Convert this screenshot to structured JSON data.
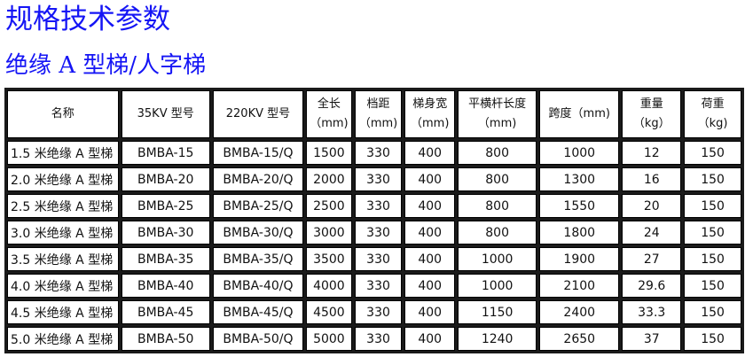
{
  "title": "规格技术参数",
  "subtitle": "绝缘 A 型梯/人字梯",
  "table": {
    "headers": [
      [
        "名称",
        ""
      ],
      [
        "35KV 型号",
        ""
      ],
      [
        "220KV 型号",
        ""
      ],
      [
        "全长",
        "（mm)"
      ],
      [
        "档距",
        "（mm)"
      ],
      [
        "梯身宽",
        "（mm)"
      ],
      [
        "平横杆长度",
        "（mm)"
      ],
      [
        "跨度（mm)",
        ""
      ],
      [
        "重量",
        "（kg）"
      ],
      [
        "荷重",
        "（kg)"
      ]
    ],
    "rows": [
      [
        "1.5 米绝缘 A 型梯",
        "BMBA-15",
        "BMBA-15/Q",
        "1500",
        "330",
        "400",
        "800",
        "1000",
        "12",
        "150"
      ],
      [
        "2.0 米绝缘 A 型梯",
        "BMBA-20",
        "BMBA-20/Q",
        "2000",
        "330",
        "400",
        "800",
        "1300",
        "16",
        "150"
      ],
      [
        "2.5 米绝缘 A 型梯",
        "BMBA-25",
        "BMBA-25/Q",
        "2500",
        "330",
        "400",
        "800",
        "1550",
        "20",
        "150"
      ],
      [
        "3.0 米绝缘 A 型梯",
        "BMBA-30",
        "BMBA-30/Q",
        "3000",
        "330",
        "400",
        "800",
        "1800",
        "24",
        "150"
      ],
      [
        "3.5 米绝缘 A 型梯",
        "BMBA-35",
        "BMBA-35/Q",
        "3500",
        "330",
        "400",
        "1000",
        "1900",
        "27",
        "150"
      ],
      [
        "4.0 米绝缘 A 型梯",
        "BMBA-40",
        "BMBA-40/Q",
        "4000",
        "330",
        "400",
        "1000",
        "2100",
        "29.6",
        "150"
      ],
      [
        "4.5 米绝缘 A 型梯",
        "BMBA-45",
        "BMBA-45/Q",
        "4500",
        "330",
        "400",
        "1150",
        "2400",
        "33.3",
        "150"
      ],
      [
        "5.0 米绝缘 A 型梯",
        "BMBA-50",
        "BMBA-50/Q",
        "5000",
        "330",
        "400",
        "1240",
        "2650",
        "37",
        "150"
      ]
    ]
  },
  "colors": {
    "title": "#1515f5",
    "border": "#1a1a1a"
  }
}
